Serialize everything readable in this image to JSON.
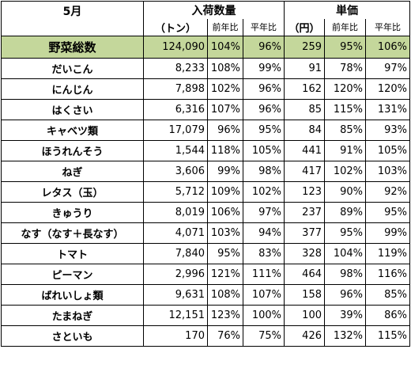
{
  "header": {
    "month": "5月",
    "group_arrivals": "入荷数量",
    "group_price": "単価",
    "unit_arrivals": "（トン）",
    "unit_price": "（円）",
    "col_prev_year": "前年比",
    "col_avg_year": "平年比"
  },
  "total": {
    "name": "野菜総数",
    "qty": "124,090",
    "qty_yoy": "104%",
    "qty_avg": "96%",
    "price": "259",
    "price_yoy": "95%",
    "price_avg": "106%"
  },
  "rows": [
    {
      "name": "だいこん",
      "qty": "8,233",
      "qty_yoy": "108%",
      "qty_avg": "99%",
      "price": "91",
      "price_yoy": "78%",
      "price_avg": "97%"
    },
    {
      "name": "にんじん",
      "qty": "7,898",
      "qty_yoy": "102%",
      "qty_avg": "96%",
      "price": "162",
      "price_yoy": "120%",
      "price_avg": "120%"
    },
    {
      "name": "はくさい",
      "qty": "6,316",
      "qty_yoy": "107%",
      "qty_avg": "96%",
      "price": "85",
      "price_yoy": "115%",
      "price_avg": "131%"
    },
    {
      "name": "キャベツ類",
      "qty": "17,079",
      "qty_yoy": "96%",
      "qty_avg": "95%",
      "price": "84",
      "price_yoy": "85%",
      "price_avg": "93%"
    },
    {
      "name": "ほうれんそう",
      "qty": "1,544",
      "qty_yoy": "118%",
      "qty_avg": "105%",
      "price": "441",
      "price_yoy": "91%",
      "price_avg": "105%"
    },
    {
      "name": "ねぎ",
      "qty": "3,606",
      "qty_yoy": "99%",
      "qty_avg": "98%",
      "price": "417",
      "price_yoy": "102%",
      "price_avg": "103%"
    },
    {
      "name": "レタス（玉）",
      "qty": "5,712",
      "qty_yoy": "109%",
      "qty_avg": "102%",
      "price": "123",
      "price_yoy": "90%",
      "price_avg": "92%"
    },
    {
      "name": "きゅうり",
      "qty": "8,019",
      "qty_yoy": "106%",
      "qty_avg": "97%",
      "price": "237",
      "price_yoy": "89%",
      "price_avg": "95%"
    },
    {
      "name": "なす（なす＋長なす）",
      "qty": "4,071",
      "qty_yoy": "103%",
      "qty_avg": "94%",
      "price": "377",
      "price_yoy": "95%",
      "price_avg": "99%"
    },
    {
      "name": "トマト",
      "qty": "7,840",
      "qty_yoy": "95%",
      "qty_avg": "83%",
      "price": "328",
      "price_yoy": "104%",
      "price_avg": "119%"
    },
    {
      "name": "ピーマン",
      "qty": "2,996",
      "qty_yoy": "121%",
      "qty_avg": "111%",
      "price": "464",
      "price_yoy": "98%",
      "price_avg": "116%"
    },
    {
      "name": "ばれいしょ類",
      "qty": "9,631",
      "qty_yoy": "108%",
      "qty_avg": "107%",
      "price": "158",
      "price_yoy": "96%",
      "price_avg": "85%"
    },
    {
      "name": "たまねぎ",
      "qty": "12,151",
      "qty_yoy": "123%",
      "qty_avg": "100%",
      "price": "100",
      "price_yoy": "39%",
      "price_avg": "86%"
    },
    {
      "name": "さといも",
      "qty": "170",
      "qty_yoy": "76%",
      "qty_avg": "75%",
      "price": "426",
      "price_yoy": "132%",
      "price_avg": "115%"
    }
  ]
}
